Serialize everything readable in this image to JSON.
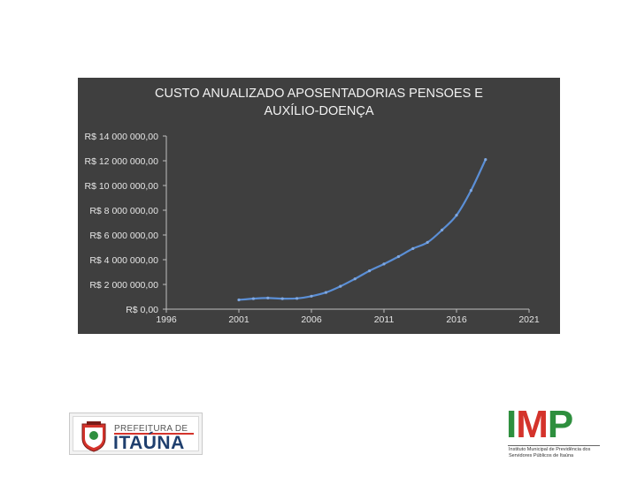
{
  "chart_data": {
    "type": "line",
    "title_lines": [
      "CUSTO ANUALIZADO APOSENTADORIAS PENSOES E",
      "AUXÍLIO-DOENÇA"
    ],
    "xlabel": "",
    "ylabel": "",
    "xlim": [
      1996,
      2021
    ],
    "ylim": [
      0,
      14000000
    ],
    "x_ticks": [
      1996,
      2001,
      2006,
      2011,
      2016,
      2021
    ],
    "x_tick_labels": [
      "1996",
      "2001",
      "2006",
      "2011",
      "2016",
      "2021"
    ],
    "y_ticks": [
      0,
      2000000,
      4000000,
      6000000,
      8000000,
      10000000,
      12000000,
      14000000
    ],
    "y_tick_labels": [
      "R$ 0,00",
      "R$ 2 000 000,00",
      "R$ 4 000 000,00",
      "R$ 6 000 000,00",
      "R$ 8 000 000,00",
      "R$ 10 000 000,00",
      "R$ 12 000 000,00",
      "R$ 14 000 000,00"
    ],
    "grid": false,
    "series": [
      {
        "color": "#5b8fd6",
        "x": [
          2001,
          2002,
          2003,
          2004,
          2005,
          2006,
          2007,
          2008,
          2009,
          2010,
          2011,
          2012,
          2013,
          2014,
          2015,
          2016,
          2017,
          2018
        ],
        "y": [
          750000,
          850000,
          900000,
          850000,
          870000,
          1050000,
          1350000,
          1850000,
          2450000,
          3100000,
          3650000,
          4250000,
          4900000,
          5400000,
          6400000,
          7600000,
          9600000,
          12100000
        ]
      }
    ]
  },
  "logos": {
    "prefeitura_prefix": "PREFEITURA DE",
    "prefeitura_city": "ITAÚNA",
    "imp_letters": [
      "I",
      "M",
      "P"
    ],
    "imp_subtitle": "Instituto Municipal de Previdência dos Servidores Públicos de Itaúna"
  },
  "colors": {
    "panel_bg": "#3f3f3f",
    "axis": "#bfbfbf",
    "text": "#e6e6e6",
    "imp_green": "#2e8f3e",
    "imp_red": "#d4332b",
    "itauna_blue": "#1f3f6e"
  }
}
